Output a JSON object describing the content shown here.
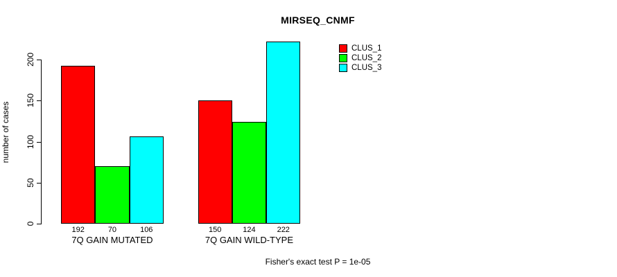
{
  "chart_data": {
    "type": "bar",
    "title": "MIRSEQ_CNMF",
    "ylabel": "number of cases",
    "xlabel": "",
    "categories": [
      "7Q GAIN MUTATED",
      "7Q GAIN WILD-TYPE"
    ],
    "series": [
      {
        "name": "CLUS_1",
        "color": "#ff0000",
        "values": [
          192,
          150
        ]
      },
      {
        "name": "CLUS_2",
        "color": "#00ff00",
        "values": [
          70,
          124
        ]
      },
      {
        "name": "CLUS_3",
        "color": "#00ffff",
        "values": [
          106,
          222
        ]
      }
    ],
    "bar_value_labels": [
      [
        "192",
        "70",
        "106"
      ],
      [
        "150",
        "124",
        "222"
      ]
    ],
    "yticks": [
      0,
      50,
      100,
      150,
      200
    ],
    "ylim": [
      0,
      222
    ],
    "grid": false,
    "legend_position": "top-right",
    "legend_entries": [
      "CLUS_1",
      "CLUS_2",
      "CLUS_3"
    ],
    "annotation": "Fisher's exact test P = 1e-05",
    "bar_border_color": "#000000",
    "axis_color": "#000000",
    "text_color": "#000000"
  }
}
